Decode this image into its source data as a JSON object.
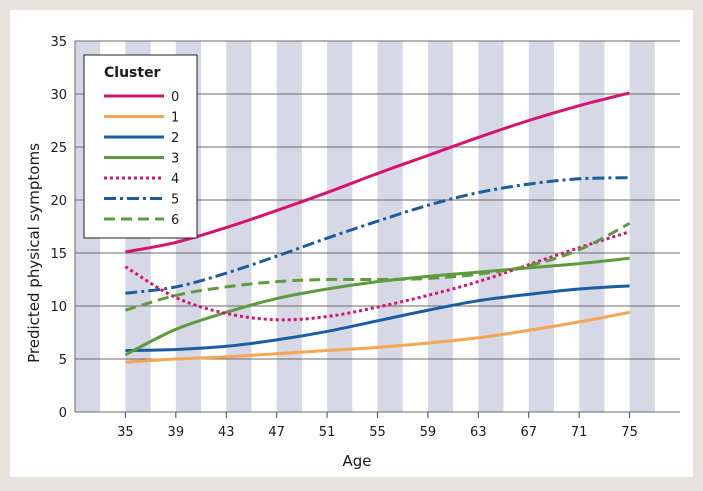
{
  "chart_data": {
    "type": "line",
    "title": "",
    "xlabel": "Age",
    "ylabel": "Predicted physical symptoms",
    "x": [
      35,
      39,
      43,
      47,
      51,
      55,
      59,
      63,
      67,
      71,
      75
    ],
    "x_ticks": [
      "35",
      "39",
      "43",
      "47",
      "51",
      "55",
      "59",
      "63",
      "67",
      "71",
      "75"
    ],
    "xlim": [
      31,
      79
    ],
    "ylim": [
      0,
      35
    ],
    "y_ticks": [
      "0",
      "5",
      "10",
      "15",
      "20",
      "25",
      "30",
      "35"
    ],
    "grid": "horizontal lines, alternating vertical bands",
    "legend": {
      "title": "Cluster",
      "placement": "top-left"
    },
    "series": [
      {
        "name": "0",
        "color": "#d6136f",
        "style": "solid",
        "values": [
          15.1,
          16.0,
          17.4,
          19.0,
          20.7,
          22.5,
          24.2,
          25.9,
          27.5,
          28.9,
          30.1
        ]
      },
      {
        "name": "1",
        "color": "#f4a653",
        "style": "solid",
        "values": [
          4.7,
          5.0,
          5.2,
          5.5,
          5.8,
          6.1,
          6.5,
          7.0,
          7.7,
          8.5,
          9.4
        ]
      },
      {
        "name": "2",
        "color": "#1a5da0",
        "style": "solid",
        "values": [
          5.8,
          5.9,
          6.2,
          6.8,
          7.6,
          8.6,
          9.6,
          10.5,
          11.1,
          11.6,
          11.9
        ]
      },
      {
        "name": "3",
        "color": "#5e9b3c",
        "style": "solid",
        "values": [
          5.4,
          7.8,
          9.4,
          10.7,
          11.6,
          12.3,
          12.8,
          13.2,
          13.6,
          14.0,
          14.5
        ]
      },
      {
        "name": "4",
        "color": "#d6136f",
        "style": "dotted",
        "values": [
          13.7,
          10.8,
          9.3,
          8.7,
          9.0,
          9.9,
          11.0,
          12.3,
          13.9,
          15.5,
          17.0
        ]
      },
      {
        "name": "5",
        "color": "#1a5da0",
        "style": "dashdot",
        "values": [
          11.2,
          11.8,
          13.1,
          14.7,
          16.4,
          18.0,
          19.5,
          20.7,
          21.5,
          22.0,
          22.1
        ]
      },
      {
        "name": "6",
        "color": "#5e9b3c",
        "style": "dashed",
        "values": [
          9.6,
          11.0,
          11.8,
          12.3,
          12.5,
          12.5,
          12.6,
          13.0,
          13.8,
          15.3,
          17.8
        ]
      }
    ]
  }
}
